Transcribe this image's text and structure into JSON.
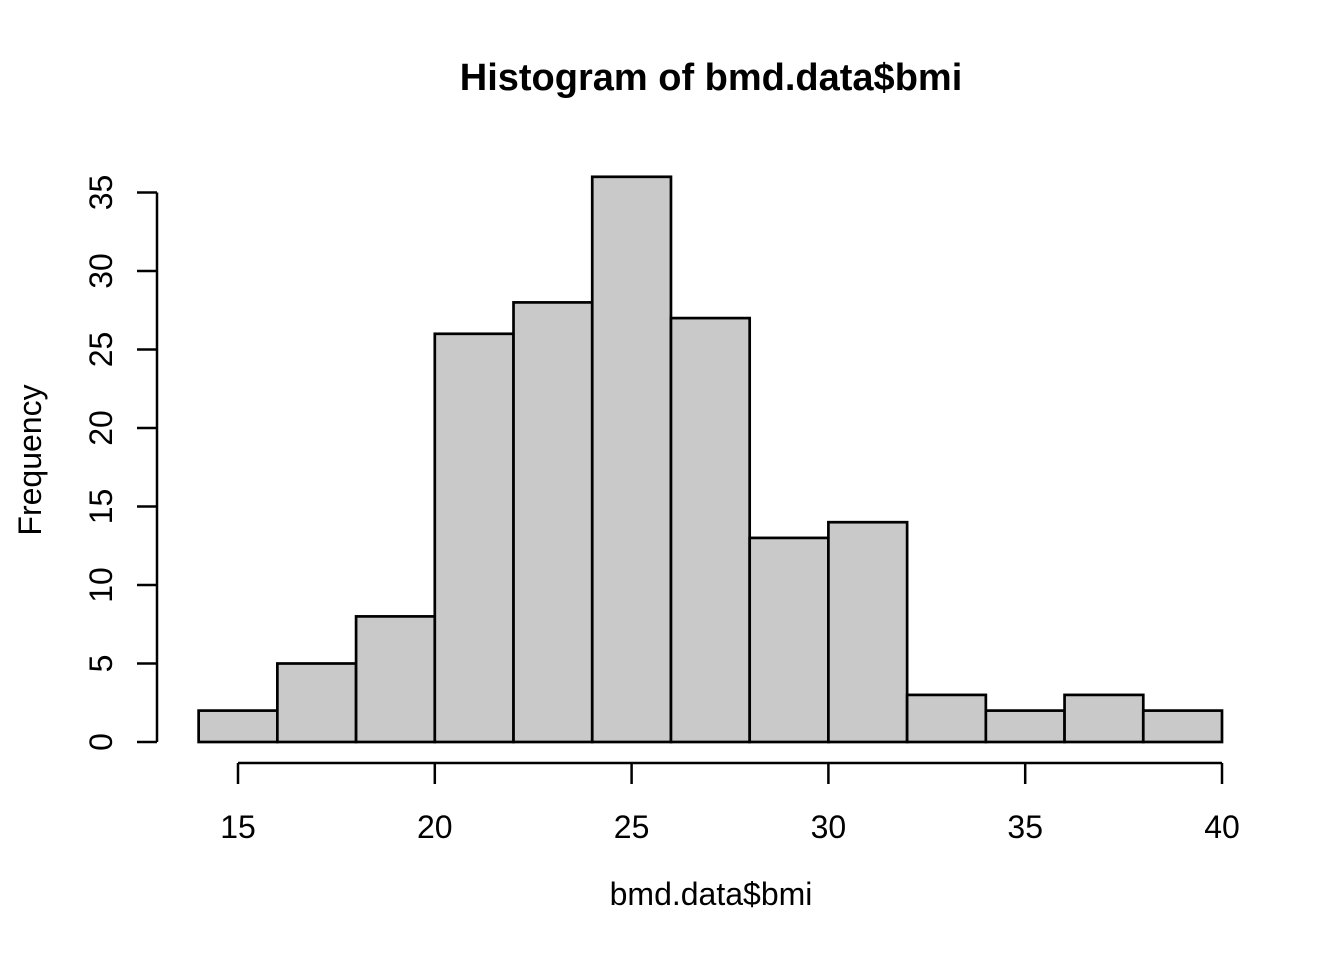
{
  "title": "Histogram of bmd.data$bmi",
  "x_axis_label": "bmd.data$bmi",
  "y_axis_label": "Frequency",
  "chart_data": {
    "type": "bar",
    "subtype": "histogram",
    "title": "Histogram of bmd.data$bmi",
    "xlabel": "bmd.data$bmi",
    "ylabel": "Frequency",
    "bin_edges": [
      14,
      16,
      18,
      20,
      22,
      24,
      26,
      28,
      30,
      32,
      34,
      36,
      38,
      40
    ],
    "values": [
      2,
      5,
      8,
      26,
      28,
      36,
      27,
      13,
      14,
      3,
      2,
      3,
      2
    ],
    "x_ticks": [
      "15",
      "20",
      "25",
      "30",
      "35",
      "40"
    ],
    "x_tick_values": [
      15,
      20,
      25,
      30,
      35,
      40
    ],
    "y_ticks": [
      "0",
      "5",
      "10",
      "15",
      "20",
      "25",
      "30",
      "35"
    ],
    "y_tick_values": [
      0,
      5,
      10,
      15,
      20,
      25,
      30,
      35
    ],
    "xlim": [
      14,
      40
    ],
    "ylim": [
      0,
      36
    ],
    "grid": false,
    "legend": null,
    "bar_fill": "#C9C9C9",
    "bar_border": "#000000",
    "axis_color": "#000000",
    "text_color": "#000000",
    "background": "#FFFFFF"
  }
}
